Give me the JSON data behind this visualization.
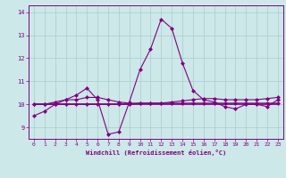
{
  "xlabel": "Windchill (Refroidissement éolien,°C)",
  "bg_color": "#cce8e8",
  "grid_color": "#aacccc",
  "line_color": "#800080",
  "x_hours": [
    0,
    1,
    2,
    3,
    4,
    5,
    6,
    7,
    8,
    9,
    10,
    11,
    12,
    13,
    14,
    15,
    16,
    17,
    18,
    19,
    20,
    21,
    22,
    23
  ],
  "line1": [
    9.5,
    9.7,
    10.0,
    10.2,
    10.4,
    10.7,
    10.2,
    8.7,
    8.8,
    10.1,
    11.5,
    12.4,
    13.7,
    13.3,
    11.8,
    10.6,
    10.2,
    10.1,
    9.9,
    9.8,
    10.0,
    10.0,
    9.9,
    10.2
  ],
  "line2": [
    10.0,
    10.0,
    10.1,
    10.2,
    10.2,
    10.3,
    10.3,
    10.2,
    10.1,
    10.05,
    10.05,
    10.05,
    10.05,
    10.1,
    10.15,
    10.2,
    10.25,
    10.25,
    10.2,
    10.2,
    10.2,
    10.2,
    10.25,
    10.3
  ],
  "line3": [
    10.0,
    10.0,
    10.0,
    10.0,
    10.0,
    10.0,
    10.0,
    10.0,
    10.0,
    10.0,
    10.0,
    10.0,
    10.0,
    10.0,
    10.0,
    10.0,
    10.0,
    10.0,
    10.0,
    10.0,
    10.0,
    10.0,
    10.0,
    10.0
  ],
  "line4": [
    10.0,
    10.0,
    10.0,
    10.0,
    10.0,
    10.0,
    10.0,
    10.0,
    10.0,
    10.0,
    10.05,
    10.05,
    10.05,
    10.05,
    10.05,
    10.05,
    10.05,
    10.05,
    10.05,
    10.05,
    10.05,
    10.05,
    10.05,
    10.05
  ],
  "ylim": [
    8.5,
    14.3
  ],
  "yticks": [
    9,
    10,
    11,
    12,
    13,
    14
  ],
  "xlim": [
    -0.5,
    23.5
  ],
  "xticks": [
    0,
    1,
    2,
    3,
    4,
    5,
    6,
    7,
    8,
    9,
    10,
    11,
    12,
    13,
    14,
    15,
    16,
    17,
    18,
    19,
    20,
    21,
    22,
    23
  ],
  "marker": "D",
  "markersize": 2.5,
  "linewidth": 0.8
}
